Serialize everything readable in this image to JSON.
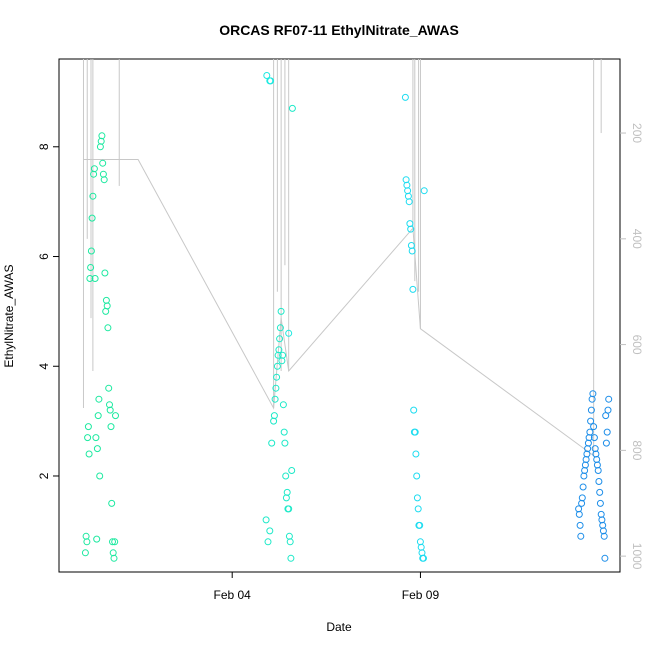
{
  "chart_data": {
    "type": "scatter",
    "title": "ORCAS RF07-11 EthylNitrate_AWAS",
    "xlabel": "Date",
    "ylabel": "EthylNitrate_AWAS",
    "x_ticks": [
      {
        "label": "Feb 04",
        "value": 4
      },
      {
        "label": "Feb 09",
        "value": 9
      }
    ],
    "xlim": [
      -0.6,
      14.3
    ],
    "ylim": [
      0.25,
      9.6
    ],
    "y_ticks": [
      2,
      4,
      6,
      8
    ],
    "y2_ticks": [
      200,
      400,
      600,
      800,
      1000
    ],
    "y2lim": [
      1030,
      60
    ],
    "secondary_series": {
      "color": "#c8c8c8",
      "trend": [
        {
          "x": 0.05,
          "y": 250
        },
        {
          "x": 1.5,
          "y": 250
        },
        {
          "x": 5.1,
          "y": 720
        },
        {
          "x": 5.3,
          "y": 550
        },
        {
          "x": 5.5,
          "y": 650
        },
        {
          "x": 8.8,
          "y": 380
        },
        {
          "x": 9.0,
          "y": 570
        },
        {
          "x": 13.6,
          "y": 810
        }
      ],
      "spikes": [
        {
          "x": 0.05,
          "y_min": 60,
          "y_max": 720
        },
        {
          "x": 0.15,
          "y_min": 60,
          "y_max": 400
        },
        {
          "x": 0.25,
          "y_min": 60,
          "y_max": 550
        },
        {
          "x": 0.3,
          "y_min": 60,
          "y_max": 650
        },
        {
          "x": 1.0,
          "y_min": 60,
          "y_max": 300
        },
        {
          "x": 5.1,
          "y_min": 60,
          "y_max": 720
        },
        {
          "x": 5.2,
          "y_min": 60,
          "y_max": 500
        },
        {
          "x": 5.3,
          "y_min": 60,
          "y_max": 650
        },
        {
          "x": 5.4,
          "y_min": 60,
          "y_max": 450
        },
        {
          "x": 5.5,
          "y_min": 60,
          "y_max": 650
        },
        {
          "x": 8.8,
          "y_min": 60,
          "y_max": 380
        },
        {
          "x": 8.85,
          "y_min": 60,
          "y_max": 480
        },
        {
          "x": 8.95,
          "y_min": 60,
          "y_max": 500
        },
        {
          "x": 9.0,
          "y_min": 60,
          "y_max": 570
        },
        {
          "x": 13.6,
          "y_min": 60,
          "y_max": 810
        },
        {
          "x": 13.8,
          "y_min": 60,
          "y_max": 200
        }
      ]
    },
    "series": [
      {
        "color": "#1de9a0",
        "x": [
          0.1,
          0.12,
          0.14,
          0.16,
          0.18,
          0.2,
          0.22,
          0.24,
          0.26,
          0.28,
          0.3,
          0.32,
          0.34,
          0.36,
          0.38,
          0.4,
          0.42,
          0.44,
          0.46,
          0.48,
          0.5,
          0.52,
          0.54,
          0.56,
          0.58,
          0.6,
          0.62,
          0.64,
          0.66,
          0.68,
          0.7,
          0.72,
          0.74,
          0.76,
          0.78,
          0.8,
          0.82,
          0.84,
          0.86,
          0.88,
          0.9
        ],
        "y": [
          0.6,
          0.9,
          0.8,
          2.7,
          2.9,
          2.4,
          5.6,
          5.8,
          6.1,
          6.7,
          7.1,
          7.5,
          7.6,
          5.6,
          2.7,
          0.85,
          2.5,
          3.1,
          3.4,
          2.0,
          8.0,
          8.1,
          8.2,
          7.7,
          7.5,
          7.4,
          5.7,
          5.0,
          5.2,
          5.1,
          4.7,
          3.6,
          3.3,
          3.2,
          2.9,
          1.5,
          0.8,
          0.6,
          0.5,
          0.8,
          3.1
        ]
      },
      {
        "color": "#1de9c8",
        "x": [
          4.9,
          4.95,
          5.0,
          5.05,
          5.1,
          5.12,
          5.14,
          5.16,
          5.18,
          5.2,
          5.22,
          5.24,
          5.26,
          5.28,
          5.3,
          5.32,
          5.34,
          5.36,
          5.38,
          5.4,
          5.42,
          5.44,
          5.46,
          5.48,
          5.5,
          5.52,
          5.54,
          5.56,
          5.58,
          5.6
        ],
        "y": [
          1.2,
          0.8,
          1.0,
          2.6,
          3.0,
          3.1,
          3.4,
          3.6,
          3.8,
          4.0,
          4.2,
          4.3,
          4.5,
          4.7,
          5.0,
          4.1,
          4.2,
          3.3,
          2.8,
          2.6,
          2.0,
          1.6,
          1.7,
          1.4,
          1.4,
          0.9,
          0.8,
          0.5,
          2.1,
          8.7
        ]
      },
      {
        "color": "#1de9e0",
        "x": [
          4.92,
          5.0,
          5.02,
          5.5
        ],
        "y": [
          9.3,
          9.2,
          9.2,
          4.6
        ]
      },
      {
        "color": "#1ddcf0",
        "x": [
          8.6,
          8.62,
          8.64,
          8.66,
          8.68,
          8.7,
          8.72,
          8.74,
          8.76,
          8.78,
          8.8,
          8.82,
          8.84,
          8.86,
          8.88,
          8.9,
          8.92,
          8.94,
          8.96,
          8.98,
          9.0,
          9.02,
          9.04,
          9.06,
          9.08,
          9.1
        ],
        "y": [
          8.9,
          7.4,
          7.3,
          7.2,
          7.1,
          7.0,
          6.6,
          6.5,
          6.2,
          6.1,
          5.4,
          3.2,
          2.8,
          2.8,
          2.4,
          2.0,
          1.6,
          1.4,
          1.1,
          1.1,
          0.8,
          0.7,
          0.6,
          0.5,
          0.5,
          7.2
        ]
      },
      {
        "color": "#1d8ee9",
        "x": [
          13.2,
          13.22,
          13.24,
          13.26,
          13.28,
          13.3,
          13.32,
          13.34,
          13.36,
          13.38,
          13.4,
          13.42,
          13.44,
          13.46,
          13.48,
          13.5,
          13.52,
          13.54,
          13.56,
          13.58,
          13.6,
          13.62,
          13.64,
          13.66,
          13.68,
          13.7,
          13.72,
          13.74,
          13.76,
          13.78,
          13.8,
          13.82,
          13.84,
          13.86,
          13.88,
          13.9,
          13.92,
          13.94,
          13.96,
          13.98,
          14.0
        ],
        "y": [
          1.4,
          1.3,
          1.1,
          0.9,
          1.5,
          1.6,
          1.8,
          2.0,
          2.1,
          2.2,
          2.3,
          2.4,
          2.5,
          2.6,
          2.7,
          2.8,
          3.0,
          3.2,
          3.4,
          3.5,
          2.9,
          2.7,
          2.5,
          2.4,
          2.3,
          2.2,
          2.1,
          1.9,
          1.7,
          1.5,
          1.3,
          1.2,
          1.1,
          1.0,
          0.9,
          0.5,
          3.1,
          2.6,
          2.8,
          3.2,
          3.4
        ]
      }
    ]
  }
}
